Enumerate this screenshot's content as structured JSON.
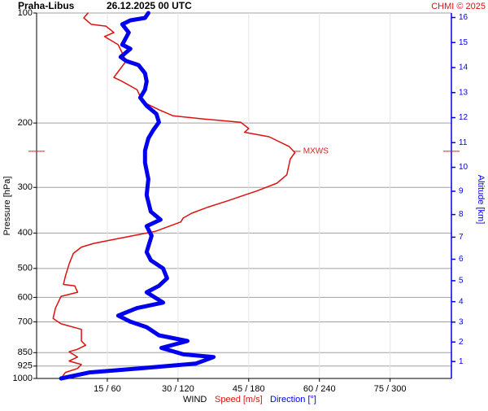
{
  "chart_data": {
    "type": "line",
    "title": "Praha-Libus",
    "subtitle": "26.12.2025 00 UTC",
    "credit": "CHMI © 2025",
    "ylabel": "Pressure [hPa]",
    "y2label": "Altitude [km]",
    "xlabel": "WIND",
    "log_y": true,
    "grid": true,
    "ylim": [
      1000,
      100
    ],
    "yticks": [
      100,
      200,
      300,
      400,
      500,
      600,
      700,
      850,
      925,
      1000
    ],
    "xlim": [
      0,
      88
    ],
    "x2lim": [
      0,
      352
    ],
    "xticks": [
      {
        "value": 15,
        "label": "15 / 60"
      },
      {
        "value": 30,
        "label": "30 / 120"
      },
      {
        "value": 45,
        "label": "45 / 180"
      },
      {
        "value": 60,
        "label": "60 / 240"
      },
      {
        "value": 75,
        "label": "75 / 300"
      }
    ],
    "y2ticks": [
      1,
      2,
      3,
      4,
      5,
      6,
      7,
      8,
      9,
      10,
      11,
      12,
      13,
      14,
      15,
      16
    ],
    "y2color": "#0000ee",
    "mxws": {
      "label": "MXWS",
      "pressure": 239,
      "speed": 55,
      "color": "#dd2222"
    },
    "series": [
      {
        "name": "Speed [m/s]",
        "color": "#dd1111",
        "width": 1.5,
        "pressure": [
          100,
          103.1,
          107.4,
          108.6,
          113.1,
          116,
          122.1,
          135.3,
          150,
          154,
          162,
          175,
          184,
          191,
          195,
          199,
          207,
          212,
          218,
          232,
          241,
          251,
          277,
          292,
          307,
          315,
          326,
          340,
          353,
          364,
          373,
          396,
          412,
          427,
          437,
          455,
          486,
          525,
          553,
          558,
          581,
          596,
          642,
          685,
          709,
          734,
          790,
          811,
          832,
          845,
          874,
          896,
          916,
          939,
          963,
          1000
        ],
        "values": [
          10.9,
          10.0,
          11.6,
          14.7,
          16.4,
          14.4,
          17.3,
          19.0,
          16.4,
          18.2,
          21.3,
          22.5,
          26.0,
          28.9,
          35.5,
          43.3,
          45.0,
          44.1,
          49.3,
          53.6,
          54.8,
          53.8,
          53.1,
          51.0,
          46.7,
          44.1,
          40.7,
          36.3,
          32.9,
          31.1,
          30.6,
          25.1,
          18.2,
          12.1,
          9.5,
          7.8,
          6.9,
          6.1,
          5.7,
          8.1,
          8.7,
          5.2,
          4.0,
          3.5,
          5.2,
          9.5,
          9.5,
          10.4,
          8.7,
          6.9,
          8.7,
          6.9,
          9.5,
          8.7,
          6.1,
          5.2
        ]
      },
      {
        "name": "Direction [°]",
        "color": "#0000ee",
        "width": 5,
        "axis": "x2",
        "pressure": [
          100,
          103.1,
          104.7,
          107.4,
          113.1,
          122.1,
          125.3,
          131.9,
          135.3,
          138.8,
          146.2,
          153.8,
          162,
          170.5,
          179.4,
          188.9,
          199,
          209.2,
          220.3,
          238,
          256.9,
          284.6,
          315,
          349.5,
          367.6,
          383,
          407,
          451,
          475,
          500,
          532,
          558,
          581,
          620,
          642,
          673,
          699,
          724,
          762,
          790,
          825,
          859,
          874,
          911,
          939,
          963,
          1000
        ],
        "values": [
          94.8,
          92.0,
          79.6,
          72.7,
          78.2,
          72.7,
          79.6,
          71.3,
          76.1,
          86.5,
          92.0,
          93.4,
          92.0,
          87.9,
          93.4,
          101.7,
          103.8,
          99.0,
          94.8,
          92.0,
          92.0,
          94.8,
          93.4,
          96.9,
          105.2,
          93.4,
          97.6,
          93.4,
          96.9,
          107.3,
          110.7,
          103.8,
          93.4,
          107.3,
          85.1,
          69.2,
          79.6,
          93.4,
          103.8,
          128.0,
          105.9,
          124.6,
          150.2,
          134.9,
          86.5,
          45.0,
          20.8
        ]
      }
    ]
  }
}
